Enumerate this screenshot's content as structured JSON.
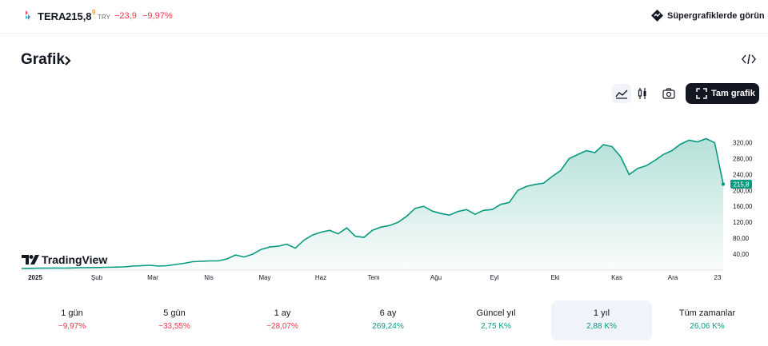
{
  "header": {
    "ticker": "TERA",
    "price": "215,8",
    "price_superscript": "9",
    "currency": "TRY",
    "change": "−23,9",
    "change_percent": "−9,97%",
    "supercharts_link": "Süpergrafiklerde görün"
  },
  "section": {
    "title": "Grafik"
  },
  "toolbar": {
    "full_chart_label": "Tam grafik"
  },
  "branding": {
    "tradingview": "TradingView"
  },
  "chart_data": {
    "type": "area",
    "last_price_label": "215,8",
    "y_ticks": [
      "320,00",
      "280,00",
      "240,00",
      "200,00",
      "160,00",
      "120,00",
      "80,00",
      "40,00"
    ],
    "y_tick_values": [
      320,
      280,
      240,
      200,
      160,
      120,
      80,
      40
    ],
    "x_ticks": [
      "2025",
      "Şub",
      "Mar",
      "Nis",
      "May",
      "Haz",
      "Tem",
      "Ağu",
      "Eyl",
      "Eki",
      "Kas",
      "Ara",
      "23"
    ],
    "series": [
      {
        "values": [
          4,
          4.5,
          4.8,
          5,
          5.2,
          5,
          5.5,
          6,
          6.2,
          6.5,
          7,
          7.5,
          8,
          10,
          11,
          12,
          10,
          11,
          14,
          17,
          21,
          22,
          23,
          23,
          28,
          38,
          33,
          40,
          52,
          58,
          60,
          65,
          55,
          75,
          88,
          95,
          100,
          91,
          106,
          85,
          82,
          100,
          108,
          112,
          120,
          135,
          155,
          160,
          148,
          142,
          138,
          147,
          152,
          140,
          150,
          152,
          165,
          170,
          200,
          210,
          215,
          218,
          235,
          250,
          280,
          290,
          300,
          295,
          315,
          310,
          285,
          240,
          255,
          262,
          275,
          290,
          300,
          316,
          326,
          322,
          330,
          320,
          215.8
        ],
        "line_color": "#089981"
      }
    ],
    "colors": {
      "line": "#089981",
      "area_top": "#089981",
      "negative": "#f23645"
    }
  },
  "periods": [
    {
      "label": "1 gün",
      "value": "−9,97%",
      "tone": "neg",
      "active": false
    },
    {
      "label": "5 gün",
      "value": "−33,55%",
      "tone": "neg",
      "active": false
    },
    {
      "label": "1 ay",
      "value": "−28,07%",
      "tone": "neg",
      "active": false
    },
    {
      "label": "6 ay",
      "value": "269,24%",
      "tone": "pos",
      "active": false
    },
    {
      "label": "Güncel yıl",
      "value": "2,75 K%",
      "tone": "pos",
      "active": false
    },
    {
      "label": "1 yıl",
      "value": "2,88 K%",
      "tone": "pos",
      "active": true
    },
    {
      "label": "Tüm zamanlar",
      "value": "26,06 K%",
      "tone": "pos",
      "active": false
    }
  ]
}
